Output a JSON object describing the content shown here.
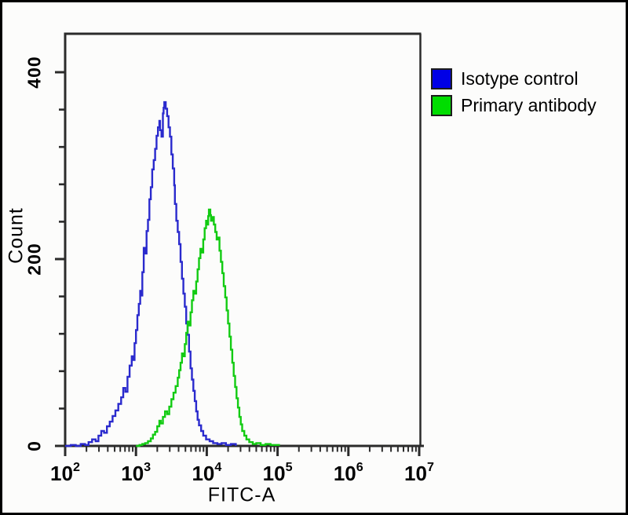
{
  "figure": {
    "xlabel": "FITC-A",
    "ylabel": "Count",
    "legend": [
      {
        "label": "Isotype control",
        "color": "#0000e6"
      },
      {
        "label": "Primary antibody",
        "color": "#00dd00"
      }
    ]
  },
  "chart_data": {
    "type": "line",
    "subtype": "flow-cytometry-overlay-histogram",
    "title": "",
    "xlabel": "FITC-A",
    "ylabel": "Count",
    "x_scale": "log10",
    "x_tick_base": "10",
    "x_major_tick_exponents": [
      2,
      3,
      4,
      5,
      6,
      7
    ],
    "x_minor_ticks": "log-subdivisions-2-to-9-per-decade",
    "y_ticks_major": [
      0,
      200,
      400
    ],
    "y_ticks_minor": [
      40,
      80,
      120,
      160,
      240,
      280,
      320,
      360
    ],
    "ylim": [
      0,
      441
    ],
    "grid": false,
    "legend_position": "outside-top-right",
    "axis_color": "#2b2b2b",
    "series": [
      {
        "name": "Isotype control",
        "dom_name": "isotype-control-curve",
        "color": "#2a2acd",
        "peak_fitc_approx": 2500,
        "peak_count_approx": 368,
        "points": [
          [
            2.0,
            0
          ],
          [
            2.08,
            1
          ],
          [
            2.15,
            0
          ],
          [
            2.22,
            2
          ],
          [
            2.28,
            1
          ],
          [
            2.33,
            4
          ],
          [
            2.38,
            7
          ],
          [
            2.43,
            5
          ],
          [
            2.47,
            11
          ],
          [
            2.51,
            16
          ],
          [
            2.55,
            14
          ],
          [
            2.59,
            21
          ],
          [
            2.63,
            26
          ],
          [
            2.67,
            32
          ],
          [
            2.71,
            38
          ],
          [
            2.75,
            45
          ],
          [
            2.79,
            52
          ],
          [
            2.82,
            62
          ],
          [
            2.85,
            58
          ],
          [
            2.88,
            74
          ],
          [
            2.91,
            86
          ],
          [
            2.94,
            96
          ],
          [
            2.96,
            92
          ],
          [
            2.98,
            110
          ],
          [
            3.0,
            124
          ],
          [
            3.02,
            140
          ],
          [
            3.04,
            152
          ],
          [
            3.06,
            166
          ],
          [
            3.07,
            161
          ],
          [
            3.09,
            186
          ],
          [
            3.11,
            212
          ],
          [
            3.13,
            206
          ],
          [
            3.15,
            230
          ],
          [
            3.17,
            242
          ],
          [
            3.19,
            264
          ],
          [
            3.21,
            277
          ],
          [
            3.23,
            296
          ],
          [
            3.25,
            306
          ],
          [
            3.27,
            318
          ],
          [
            3.29,
            332
          ],
          [
            3.31,
            341
          ],
          [
            3.33,
            348
          ],
          [
            3.34,
            338
          ],
          [
            3.36,
            331
          ],
          [
            3.38,
            356
          ],
          [
            3.39,
            362
          ],
          [
            3.4,
            368
          ],
          [
            3.42,
            361
          ],
          [
            3.44,
            353
          ],
          [
            3.46,
            341
          ],
          [
            3.48,
            331
          ],
          [
            3.5,
            312
          ],
          [
            3.52,
            297
          ],
          [
            3.54,
            279
          ],
          [
            3.55,
            259
          ],
          [
            3.57,
            241
          ],
          [
            3.59,
            229
          ],
          [
            3.61,
            216
          ],
          [
            3.63,
            197
          ],
          [
            3.65,
            179
          ],
          [
            3.67,
            163
          ],
          [
            3.69,
            149
          ],
          [
            3.71,
            131
          ],
          [
            3.73,
            119
          ],
          [
            3.75,
            101
          ],
          [
            3.77,
            83
          ],
          [
            3.79,
            71
          ],
          [
            3.81,
            59
          ],
          [
            3.83,
            48
          ],
          [
            3.85,
            37
          ],
          [
            3.87,
            28
          ],
          [
            3.89,
            22
          ],
          [
            3.92,
            16
          ],
          [
            3.95,
            11
          ],
          [
            3.99,
            7
          ],
          [
            4.04,
            5
          ],
          [
            4.09,
            3
          ],
          [
            4.15,
            2
          ],
          [
            4.21,
            3
          ],
          [
            4.27,
            1
          ],
          [
            4.34,
            2
          ],
          [
            4.41,
            0
          ]
        ]
      },
      {
        "name": "Primary antibody",
        "dom_name": "primary-antibody-curve",
        "color": "#12cb12",
        "peak_fitc_approx": 10700,
        "peak_count_approx": 253,
        "points": [
          [
            3.0,
            0
          ],
          [
            3.05,
            1
          ],
          [
            3.09,
            2
          ],
          [
            3.13,
            3
          ],
          [
            3.17,
            5
          ],
          [
            3.21,
            8
          ],
          [
            3.24,
            12
          ],
          [
            3.27,
            15
          ],
          [
            3.3,
            21
          ],
          [
            3.33,
            27
          ],
          [
            3.35,
            24
          ],
          [
            3.38,
            31
          ],
          [
            3.41,
            37
          ],
          [
            3.44,
            34
          ],
          [
            3.47,
            42
          ],
          [
            3.5,
            50
          ],
          [
            3.53,
            57
          ],
          [
            3.56,
            64
          ],
          [
            3.59,
            73
          ],
          [
            3.61,
            81
          ],
          [
            3.63,
            89
          ],
          [
            3.65,
            99
          ],
          [
            3.67,
            96
          ],
          [
            3.69,
            109
          ],
          [
            3.71,
            121
          ],
          [
            3.73,
            133
          ],
          [
            3.75,
            129
          ],
          [
            3.77,
            143
          ],
          [
            3.79,
            156
          ],
          [
            3.81,
            166
          ],
          [
            3.83,
            163
          ],
          [
            3.85,
            176
          ],
          [
            3.87,
            189
          ],
          [
            3.89,
            201
          ],
          [
            3.91,
            211
          ],
          [
            3.93,
            207
          ],
          [
            3.95,
            221
          ],
          [
            3.97,
            233
          ],
          [
            3.99,
            241
          ],
          [
            4.0,
            237
          ],
          [
            4.02,
            246
          ],
          [
            4.03,
            253
          ],
          [
            4.05,
            247
          ],
          [
            4.06,
            241
          ],
          [
            4.08,
            245
          ],
          [
            4.1,
            237
          ],
          [
            4.12,
            229
          ],
          [
            4.14,
            221
          ],
          [
            4.16,
            223
          ],
          [
            4.18,
            209
          ],
          [
            4.2,
            197
          ],
          [
            4.22,
            185
          ],
          [
            4.24,
            171
          ],
          [
            4.26,
            159
          ],
          [
            4.28,
            145
          ],
          [
            4.3,
            131
          ],
          [
            4.32,
            117
          ],
          [
            4.34,
            103
          ],
          [
            4.36,
            89
          ],
          [
            4.38,
            75
          ],
          [
            4.4,
            63
          ],
          [
            4.42,
            51
          ],
          [
            4.44,
            41
          ],
          [
            4.46,
            31
          ],
          [
            4.48,
            23
          ],
          [
            4.5,
            16
          ],
          [
            4.53,
            11
          ],
          [
            4.56,
            7
          ],
          [
            4.6,
            4
          ],
          [
            4.65,
            2
          ],
          [
            4.7,
            3
          ],
          [
            4.76,
            1
          ],
          [
            4.83,
            2
          ],
          [
            4.9,
            1
          ],
          [
            4.97,
            1
          ],
          [
            5.02,
            0
          ]
        ]
      }
    ]
  }
}
